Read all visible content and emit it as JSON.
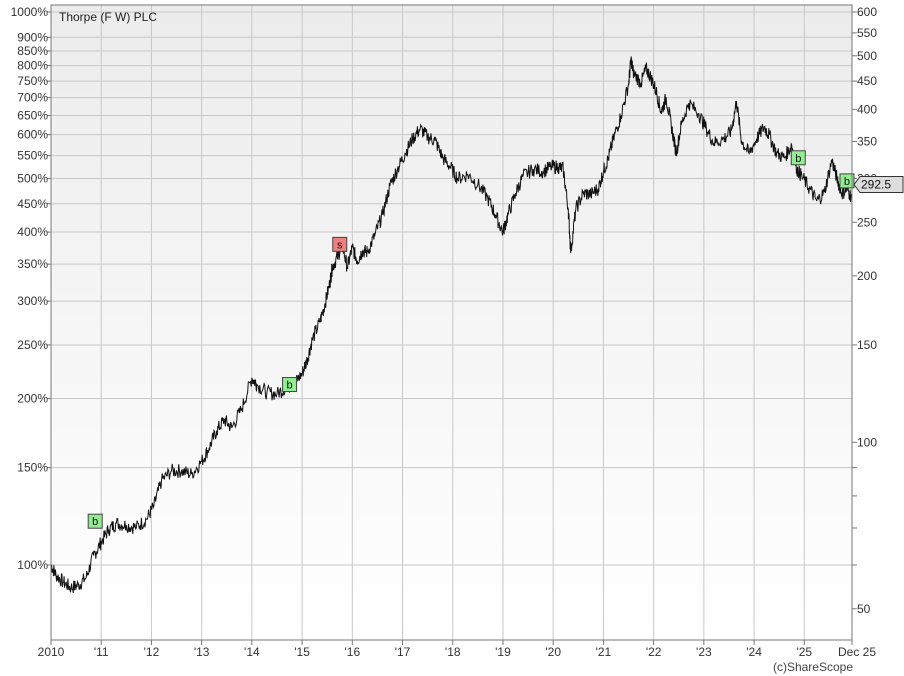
{
  "chart_data": {
    "type": "line",
    "title": "Thorpe (F W) PLC",
    "copyright": "(c)ShareScope",
    "current_price": "292.5",
    "x_axis": {
      "range": [
        2010.0,
        2025.95
      ],
      "ticks": [
        {
          "label": "2010",
          "x": 2010.0
        },
        {
          "label": "'11",
          "x": 2011.0
        },
        {
          "label": "'12",
          "x": 2012.0
        },
        {
          "label": "'13",
          "x": 2013.0
        },
        {
          "label": "'14",
          "x": 2014.0
        },
        {
          "label": "'15",
          "x": 2015.0
        },
        {
          "label": "'16",
          "x": 2016.0
        },
        {
          "label": "'17",
          "x": 2017.0
        },
        {
          "label": "'18",
          "x": 2018.0
        },
        {
          "label": "'19",
          "x": 2019.0
        },
        {
          "label": "'20",
          "x": 2020.0
        },
        {
          "label": "'21",
          "x": 2021.0
        },
        {
          "label": "'22",
          "x": 2022.0
        },
        {
          "label": "'23",
          "x": 2023.0
        },
        {
          "label": "'24",
          "x": 2024.0
        },
        {
          "label": "'25",
          "x": 2025.0
        },
        {
          "label": "Dec 25",
          "x": 2025.95
        }
      ]
    },
    "left_axis": {
      "scale": "log",
      "ticks": [
        {
          "label": "1000%",
          "value": 1000
        },
        {
          "label": "900%",
          "value": 900
        },
        {
          "label": "850%",
          "value": 850
        },
        {
          "label": "800%",
          "value": 800
        },
        {
          "label": "750%",
          "value": 750
        },
        {
          "label": "700%",
          "value": 700
        },
        {
          "label": "650%",
          "value": 650
        },
        {
          "label": "600%",
          "value": 600
        },
        {
          "label": "550%",
          "value": 550
        },
        {
          "label": "500%",
          "value": 500
        },
        {
          "label": "450%",
          "value": 450
        },
        {
          "label": "400%",
          "value": 400
        },
        {
          "label": "350%",
          "value": 350
        },
        {
          "label": "300%",
          "value": 300
        },
        {
          "label": "250%",
          "value": 250
        },
        {
          "label": "200%",
          "value": 200
        },
        {
          "label": "150%",
          "value": 150
        },
        {
          "label": "100%",
          "value": 100
        }
      ]
    },
    "right_axis": {
      "scale": "log",
      "range": [
        45,
        650
      ],
      "ticks": [
        {
          "label": "600",
          "value": 600
        },
        {
          "label": "550",
          "value": 550
        },
        {
          "label": "500",
          "value": 500
        },
        {
          "label": "450",
          "value": 450
        },
        {
          "label": "400",
          "value": 400
        },
        {
          "label": "350",
          "value": 350
        },
        {
          "label": "300",
          "value": 300
        },
        {
          "label": "250",
          "value": 250
        },
        {
          "label": "200",
          "value": 200
        },
        {
          "label": "150",
          "value": 150
        },
        {
          "label": "100",
          "value": 100
        },
        {
          "label": "50",
          "value": 50
        }
      ],
      "minor_ticks": [
        90,
        80,
        70,
        60
      ]
    },
    "grid": true,
    "series": [
      {
        "color": "#111111",
        "points": [
          [
            2010.0,
            100
          ],
          [
            2010.1,
            96
          ],
          [
            2010.25,
            93
          ],
          [
            2010.4,
            91
          ],
          [
            2010.55,
            92
          ],
          [
            2010.7,
            95
          ],
          [
            2010.85,
            104
          ],
          [
            2011.0,
            110
          ],
          [
            2011.15,
            116
          ],
          [
            2011.3,
            119
          ],
          [
            2011.5,
            118
          ],
          [
            2011.7,
            117
          ],
          [
            2011.9,
            121
          ],
          [
            2012.05,
            128
          ],
          [
            2012.2,
            142
          ],
          [
            2012.4,
            148
          ],
          [
            2012.6,
            148
          ],
          [
            2012.8,
            146
          ],
          [
            2013.0,
            154
          ],
          [
            2013.15,
            163
          ],
          [
            2013.3,
            175
          ],
          [
            2013.45,
            183
          ],
          [
            2013.6,
            177
          ],
          [
            2013.8,
            192
          ],
          [
            2014.0,
            218
          ],
          [
            2014.1,
            212
          ],
          [
            2014.3,
            205
          ],
          [
            2014.5,
            204
          ],
          [
            2014.7,
            210
          ],
          [
            2014.85,
            213
          ],
          [
            2015.0,
            222
          ],
          [
            2015.1,
            235
          ],
          [
            2015.2,
            255
          ],
          [
            2015.35,
            275
          ],
          [
            2015.45,
            295
          ],
          [
            2015.55,
            323
          ],
          [
            2015.6,
            345
          ],
          [
            2015.7,
            360
          ],
          [
            2015.8,
            380
          ],
          [
            2015.9,
            345
          ],
          [
            2016.0,
            375
          ],
          [
            2016.1,
            355
          ],
          [
            2016.2,
            370
          ],
          [
            2016.3,
            368
          ],
          [
            2016.45,
            395
          ],
          [
            2016.6,
            430
          ],
          [
            2016.75,
            485
          ],
          [
            2016.9,
            520
          ],
          [
            2017.05,
            555
          ],
          [
            2017.2,
            590
          ],
          [
            2017.35,
            615
          ],
          [
            2017.5,
            595
          ],
          [
            2017.65,
            585
          ],
          [
            2017.8,
            545
          ],
          [
            2017.95,
            525
          ],
          [
            2018.1,
            500
          ],
          [
            2018.3,
            508
          ],
          [
            2018.5,
            488
          ],
          [
            2018.7,
            460
          ],
          [
            2018.85,
            430
          ],
          [
            2019.0,
            400
          ],
          [
            2019.1,
            430
          ],
          [
            2019.25,
            470
          ],
          [
            2019.4,
            505
          ],
          [
            2019.6,
            520
          ],
          [
            2019.8,
            515
          ],
          [
            2019.95,
            525
          ],
          [
            2020.1,
            525
          ],
          [
            2020.2,
            520
          ],
          [
            2020.3,
            440
          ],
          [
            2020.35,
            368
          ],
          [
            2020.45,
            440
          ],
          [
            2020.6,
            470
          ],
          [
            2020.75,
            468
          ],
          [
            2020.9,
            480
          ],
          [
            2021.0,
            515
          ],
          [
            2021.1,
            545
          ],
          [
            2021.2,
            590
          ],
          [
            2021.35,
            650
          ],
          [
            2021.5,
            740
          ],
          [
            2021.55,
            820
          ],
          [
            2021.6,
            775
          ],
          [
            2021.75,
            745
          ],
          [
            2021.85,
            790
          ],
          [
            2021.95,
            760
          ],
          [
            2022.05,
            720
          ],
          [
            2022.15,
            660
          ],
          [
            2022.25,
            700
          ],
          [
            2022.35,
            625
          ],
          [
            2022.45,
            555
          ],
          [
            2022.55,
            625
          ],
          [
            2022.7,
            685
          ],
          [
            2022.9,
            655
          ],
          [
            2023.05,
            615
          ],
          [
            2023.2,
            580
          ],
          [
            2023.4,
            590
          ],
          [
            2023.55,
            610
          ],
          [
            2023.65,
            690
          ],
          [
            2023.75,
            585
          ],
          [
            2023.9,
            555
          ],
          [
            2024.05,
            590
          ],
          [
            2024.2,
            620
          ],
          [
            2024.3,
            600
          ],
          [
            2024.45,
            555
          ],
          [
            2024.6,
            545
          ],
          [
            2024.75,
            575
          ],
          [
            2024.85,
            520
          ],
          [
            2024.95,
            505
          ],
          [
            2025.1,
            480
          ],
          [
            2025.25,
            455
          ],
          [
            2025.4,
            472
          ],
          [
            2025.55,
            540
          ],
          [
            2025.65,
            500
          ],
          [
            2025.75,
            470
          ],
          [
            2025.85,
            478
          ],
          [
            2025.95,
            462
          ]
        ]
      }
    ],
    "markers": [
      {
        "label": "b",
        "x": 2010.88,
        "y": 120,
        "color": "#90ee90"
      },
      {
        "label": "s",
        "x": 2015.75,
        "y": 380,
        "color": "#f08080"
      },
      {
        "label": "b",
        "x": 2014.75,
        "y": 212,
        "color": "#90ee90"
      },
      {
        "label": "b",
        "x": 2024.88,
        "y": 545,
        "color": "#90ee90"
      },
      {
        "label": "b",
        "x": 2025.85,
        "y": 495,
        "color": "#90ee90"
      }
    ]
  }
}
